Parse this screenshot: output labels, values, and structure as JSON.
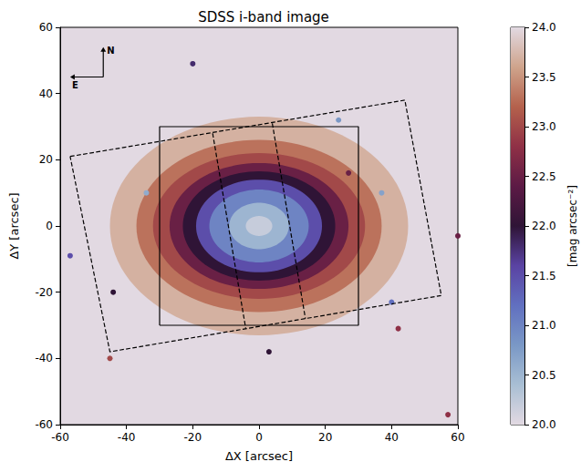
{
  "chart_data": {
    "type": "image",
    "title": "SDSS i-band image",
    "x_label": "ΔX [arcsec]",
    "y_label": "ΔY [arcsec]",
    "xlim": [
      -60,
      60
    ],
    "ylim": [
      -60,
      60
    ],
    "xticks": [
      -60,
      -40,
      -20,
      0,
      20,
      40,
      60
    ],
    "yticks": [
      -60,
      -40,
      -20,
      0,
      20,
      40,
      60
    ],
    "grid": false,
    "colorbar": {
      "label": "[mag arcsec⁻²]",
      "lim": [
        20,
        24
      ],
      "ticks": [
        {
          "value": 20,
          "label": "20.0"
        },
        20.5,
        {
          "value": 21,
          "label": "21.0"
        },
        21.5,
        {
          "value": 22,
          "label": "22.0"
        },
        22.5,
        {
          "value": 23,
          "label": "23.0"
        },
        23.5,
        {
          "value": 24,
          "label": "24.0"
        }
      ]
    },
    "sky": 24,
    "isophotes": [
      {
        "mag": 23.7,
        "a": 45,
        "b": 33
      },
      {
        "mag": 23.3,
        "a": 37,
        "b": 26
      },
      {
        "mag": 23.0,
        "a": 32,
        "b": 22
      },
      {
        "mag": 22.5,
        "a": 27,
        "b": 19
      },
      {
        "mag": 22.0,
        "a": 23,
        "b": 16.5
      },
      {
        "mag": 21.5,
        "a": 19,
        "b": 14
      },
      {
        "mag": 21.0,
        "a": 15,
        "b": 11
      },
      {
        "mag": 20.5,
        "a": 9,
        "b": 7
      },
      {
        "mag": 20.2,
        "a": 4,
        "b": 3
      }
    ],
    "sources": [
      {
        "x": -20,
        "y": 49,
        "mag": 21.8
      },
      {
        "x": 24,
        "y": 32,
        "mag": 20.8
      },
      {
        "x": -34,
        "y": 10,
        "mag": 20.6
      },
      {
        "x": 37,
        "y": 10,
        "mag": 20.7
      },
      {
        "x": 40,
        "y": -23,
        "mag": 21.2
      },
      {
        "x": -57,
        "y": -9,
        "mag": 21.5
      },
      {
        "x": -44,
        "y": -20,
        "mag": 22.0
      },
      {
        "x": 3,
        "y": -38,
        "mag": 22.0
      },
      {
        "x": 27,
        "y": 16,
        "mag": 22.5
      },
      {
        "x": -45,
        "y": -40,
        "mag": 23.0
      },
      {
        "x": 57,
        "y": -57,
        "mag": 22.8
      },
      {
        "x": 60,
        "y": -3,
        "mag": 22.5
      },
      {
        "x": 42,
        "y": -31,
        "mag": 22.8
      }
    ],
    "series": [
      {
        "type": "line",
        "line_style": "solid",
        "color": "#000000",
        "x": [
          -30,
          30,
          30,
          -30,
          -30
        ],
        "y": [
          -30,
          -30,
          30,
          30,
          -30
        ]
      },
      {
        "type": "line",
        "line_style": "dashed",
        "color": "#000000",
        "x": [
          -57,
          44,
          55,
          -45,
          -57
        ],
        "y": [
          21,
          38,
          -21,
          -38,
          21
        ]
      },
      {
        "type": "line",
        "line_style": "dashed",
        "color": "#000000",
        "x": [
          -14,
          -4
        ],
        "y": [
          28,
          -31
        ]
      },
      {
        "type": "line",
        "line_style": "dashed",
        "color": "#000000",
        "x": [
          4,
          14
        ],
        "y": [
          31,
          -28
        ]
      }
    ],
    "compass": {
      "north": "N",
      "east": "E"
    }
  }
}
